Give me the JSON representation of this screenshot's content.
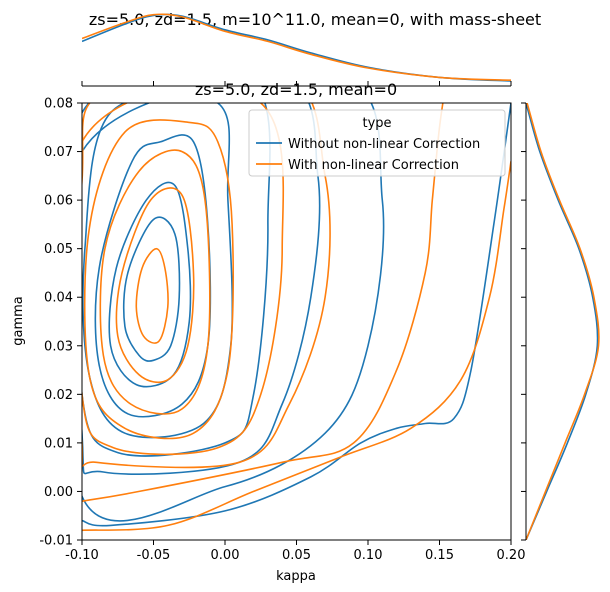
{
  "figure_title": "zs=5.0, zd=1.5, m=10^11.0, mean=0, with mass-sheet",
  "subplot_title": "zs=5.0, zd=1.5, mean=0",
  "colors": {
    "blue": "#1f77b4",
    "orange": "#ff7f0e"
  },
  "chart_data": {
    "type": "kde-joint-plot",
    "xlabel": "kappa",
    "ylabel": "gamma",
    "xlim": [
      -0.1,
      0.2
    ],
    "ylim": [
      -0.01,
      0.08
    ],
    "x_ticks": [
      "-0.10",
      "-0.05",
      "0.00",
      "0.05",
      "0.10",
      "0.15",
      "0.20"
    ],
    "y_ticks": [
      "-0.01",
      "0.00",
      "0.01",
      "0.02",
      "0.03",
      "0.04",
      "0.05",
      "0.06",
      "0.07",
      "0.08"
    ],
    "legend": {
      "title": "type",
      "position": "top-right",
      "entries": [
        "Without non-linear Correction",
        "With non-linear Correction"
      ]
    },
    "series": [
      {
        "name": "Without non-linear Correction",
        "color": "#1f77b4",
        "contours": [
          [
            [
              -0.06,
              0.028
            ],
            [
              -0.07,
              0.034
            ],
            [
              -0.068,
              0.045
            ],
            [
              -0.05,
              0.056
            ],
            [
              -0.035,
              0.053
            ],
            [
              -0.032,
              0.04
            ],
            [
              -0.038,
              0.03
            ],
            [
              -0.05,
              0.027
            ]
          ],
          [
            [
              -0.062,
              0.022
            ],
            [
              -0.08,
              0.03
            ],
            [
              -0.076,
              0.046
            ],
            [
              -0.055,
              0.06
            ],
            [
              -0.035,
              0.063
            ],
            [
              -0.026,
              0.05
            ],
            [
              -0.025,
              0.035
            ],
            [
              -0.036,
              0.024
            ]
          ],
          [
            [
              -0.068,
              0.016
            ],
            [
              -0.088,
              0.026
            ],
            [
              -0.088,
              0.046
            ],
            [
              -0.065,
              0.068
            ],
            [
              -0.045,
              0.072
            ],
            [
              -0.022,
              0.072
            ],
            [
              -0.012,
              0.055
            ],
            [
              -0.012,
              0.03
            ],
            [
              -0.03,
              0.018
            ]
          ],
          [
            [
              -0.07,
              0.012
            ],
            [
              -0.095,
              0.024
            ],
            [
              -0.098,
              0.05
            ],
            [
              -0.08,
              0.078
            ],
            [
              -0.005,
              0.08
            ],
            [
              0.002,
              0.06
            ],
            [
              0.004,
              0.03
            ],
            [
              -0.015,
              0.014
            ]
          ],
          [
            [
              -0.075,
              0.008
            ],
            [
              -0.1,
              0.02
            ],
            [
              -0.1,
              0.066
            ],
            [
              -0.09,
              0.085
            ],
            [
              0.018,
              0.085
            ],
            [
              0.03,
              0.055
            ],
            [
              0.02,
              0.02
            ],
            [
              0.0,
              0.01
            ]
          ],
          [
            [
              -0.085,
              0.004
            ],
            [
              -0.1,
              0.012
            ],
            [
              -0.1,
              0.078
            ],
            [
              0.04,
              0.085
            ],
            [
              0.065,
              0.065
            ],
            [
              0.06,
              0.04
            ],
            [
              0.04,
              0.018
            ],
            [
              0.01,
              0.006
            ]
          ],
          [
            [
              -0.1,
              -0.001
            ],
            [
              -0.1,
              0.07
            ],
            [
              0.08,
              0.085
            ],
            [
              0.11,
              0.06
            ],
            [
              0.1,
              0.03
            ],
            [
              0.07,
              0.012
            ],
            [
              0.0,
              0.001
            ]
          ],
          [
            [
              -0.1,
              -0.006
            ],
            [
              -0.08,
              -0.007
            ],
            [
              0.0,
              -0.004
            ],
            [
              0.06,
              0.003
            ],
            [
              0.095,
              0.01
            ],
            [
              0.12,
              0.013
            ],
            [
              0.14,
              0.014
            ],
            [
              0.16,
              0.015
            ],
            [
              0.172,
              0.025
            ],
            [
              0.188,
              0.055
            ],
            [
              0.2,
              0.08
            ]
          ]
        ],
        "top_marginal": [
          [
            -0.1,
            0.62
          ],
          [
            -0.07,
            0.86
          ],
          [
            -0.05,
            0.98
          ],
          [
            -0.03,
            0.97
          ],
          [
            0.0,
            0.78
          ],
          [
            0.03,
            0.64
          ],
          [
            0.06,
            0.46
          ],
          [
            0.1,
            0.26
          ],
          [
            0.15,
            0.12
          ],
          [
            0.2,
            0.07
          ]
        ],
        "right_marginal": [
          [
            -0.01,
            0.0
          ],
          [
            0.0,
            0.18
          ],
          [
            0.01,
            0.36
          ],
          [
            0.02,
            0.52
          ],
          [
            0.03,
            0.62
          ],
          [
            0.04,
            0.58
          ],
          [
            0.05,
            0.46
          ],
          [
            0.06,
            0.28
          ],
          [
            0.07,
            0.12
          ],
          [
            0.08,
            0.0
          ]
        ]
      },
      {
        "name": "With non-linear Correction",
        "color": "#ff7f0e",
        "contours": [
          [
            [
              -0.057,
              0.032
            ],
            [
              -0.062,
              0.038
            ],
            [
              -0.058,
              0.046
            ],
            [
              -0.048,
              0.05
            ],
            [
              -0.042,
              0.046
            ],
            [
              -0.04,
              0.038
            ],
            [
              -0.046,
              0.031
            ]
          ],
          [
            [
              -0.06,
              0.024
            ],
            [
              -0.075,
              0.032
            ],
            [
              -0.072,
              0.045
            ],
            [
              -0.052,
              0.06
            ],
            [
              -0.03,
              0.061
            ],
            [
              -0.022,
              0.045
            ],
            [
              -0.026,
              0.03
            ],
            [
              -0.04,
              0.023
            ]
          ],
          [
            [
              -0.066,
              0.018
            ],
            [
              -0.085,
              0.028
            ],
            [
              -0.084,
              0.05
            ],
            [
              -0.06,
              0.066
            ],
            [
              -0.03,
              0.07
            ],
            [
              -0.014,
              0.06
            ],
            [
              -0.012,
              0.03
            ],
            [
              -0.03,
              0.017
            ]
          ],
          [
            [
              -0.07,
              0.013
            ],
            [
              -0.095,
              0.024
            ],
            [
              -0.095,
              0.054
            ],
            [
              -0.07,
              0.074
            ],
            [
              -0.025,
              0.076
            ],
            [
              -0.005,
              0.072
            ],
            [
              0.005,
              0.055
            ],
            [
              0.002,
              0.025
            ],
            [
              -0.022,
              0.012
            ]
          ],
          [
            [
              -0.078,
              0.009
            ],
            [
              -0.1,
              0.02
            ],
            [
              -0.1,
              0.064
            ],
            [
              -0.085,
              0.082
            ],
            [
              0.025,
              0.08
            ],
            [
              0.04,
              0.05
            ],
            [
              0.025,
              0.02
            ],
            [
              -0.005,
              0.009
            ]
          ],
          [
            [
              -0.09,
              0.006
            ],
            [
              -0.1,
              0.01
            ],
            [
              -0.1,
              0.072
            ],
            [
              0.04,
              0.085
            ],
            [
              0.07,
              0.065
            ],
            [
              0.07,
              0.04
            ],
            [
              0.045,
              0.018
            ],
            [
              0.01,
              0.006
            ]
          ],
          [
            [
              -0.1,
              -0.002
            ],
            [
              -0.06,
              0.0
            ],
            [
              0.04,
              0.006
            ],
            [
              0.09,
              0.01
            ],
            [
              0.12,
              0.025
            ],
            [
              0.14,
              0.045
            ],
            [
              0.145,
              0.06
            ],
            [
              0.15,
              0.075
            ],
            [
              0.155,
              0.085
            ]
          ],
          [
            [
              -0.1,
              -0.008
            ],
            [
              -0.04,
              -0.007
            ],
            [
              0.02,
              0.0
            ],
            [
              0.08,
              0.007
            ],
            [
              0.13,
              0.013
            ],
            [
              0.165,
              0.023
            ],
            [
              0.185,
              0.04
            ],
            [
              0.195,
              0.058
            ],
            [
              0.2,
              0.068
            ]
          ]
        ],
        "top_marginal": [
          [
            -0.1,
            0.66
          ],
          [
            -0.07,
            0.88
          ],
          [
            -0.05,
            0.99
          ],
          [
            -0.03,
            0.96
          ],
          [
            0.0,
            0.76
          ],
          [
            0.03,
            0.62
          ],
          [
            0.06,
            0.44
          ],
          [
            0.1,
            0.25
          ],
          [
            0.15,
            0.12
          ],
          [
            0.2,
            0.08
          ]
        ],
        "right_marginal": [
          [
            -0.01,
            0.0
          ],
          [
            0.0,
            0.17
          ],
          [
            0.01,
            0.34
          ],
          [
            0.02,
            0.51
          ],
          [
            0.03,
            0.63
          ],
          [
            0.04,
            0.59
          ],
          [
            0.05,
            0.47
          ],
          [
            0.06,
            0.29
          ],
          [
            0.07,
            0.13
          ],
          [
            0.08,
            0.01
          ]
        ]
      }
    ]
  }
}
